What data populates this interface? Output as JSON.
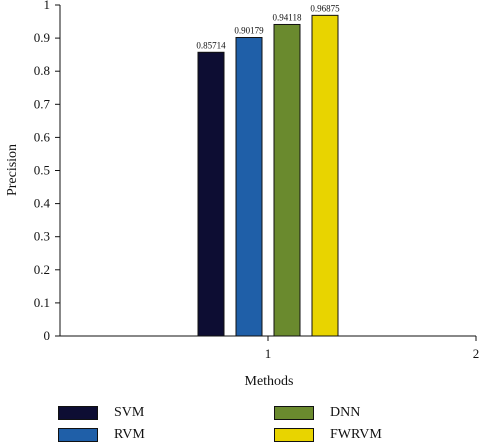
{
  "chart_data": {
    "type": "bar",
    "xlabel": "Methods",
    "ylabel": "Precision",
    "ylim": [
      0,
      1
    ],
    "xlim": [
      0,
      2
    ],
    "y_ticks": [
      "0",
      "0.1",
      "0.2",
      "0.3",
      "0.4",
      "0.5",
      "0.6",
      "0.7",
      "0.8",
      "0.9",
      "1"
    ],
    "x_ticks": [
      "1",
      "2"
    ],
    "categories": [
      "1"
    ],
    "series": [
      {
        "name": "SVM",
        "values": [
          0.85714
        ],
        "label": "0.85714",
        "color": "#0d0d33"
      },
      {
        "name": "RVM",
        "values": [
          0.90179
        ],
        "label": "0.90179",
        "color": "#1f5fa8"
      },
      {
        "name": "DNN",
        "values": [
          0.94118
        ],
        "label": "0.94118",
        "color": "#6a8a2e"
      },
      {
        "name": "FWRVM",
        "values": [
          0.96875
        ],
        "label": "0.96875",
        "color": "#e8d400"
      }
    ],
    "grid": false,
    "legend_position": "bottom"
  }
}
